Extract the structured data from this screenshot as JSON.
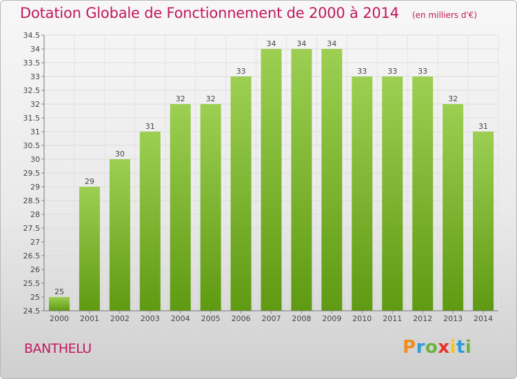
{
  "header": {
    "title": "Dotation Globale de Fonctionnement de 2000 à 2014",
    "unit": "(en milliers d'€)"
  },
  "footer": {
    "place": "BANTHELU",
    "logo_text": "Proxiti"
  },
  "colors": {
    "title": "#c2185b",
    "bar_light": "#9ccf52",
    "bar_dark": "#5f9a12",
    "logo": [
      "#f28c1e",
      "#2e9bd6",
      "#6cb33e",
      "#e8312c",
      "#f6c51b",
      "#2e9bd6",
      "#6cb33e"
    ]
  },
  "chart_data": {
    "type": "bar",
    "categories": [
      "2000",
      "2001",
      "2002",
      "2003",
      "2004",
      "2005",
      "2006",
      "2007",
      "2008",
      "2009",
      "2010",
      "2011",
      "2012",
      "2013",
      "2014"
    ],
    "values": [
      25,
      29,
      30,
      31,
      32,
      32,
      33,
      34,
      34,
      34,
      33,
      33,
      33,
      32,
      31
    ],
    "ylim": [
      24.5,
      34.5
    ],
    "yticks": [
      24.5,
      25,
      25.5,
      26,
      26.5,
      27,
      27.5,
      28,
      28.5,
      29,
      29.5,
      30,
      30.5,
      31,
      31.5,
      32,
      32.5,
      33,
      33.5,
      34,
      34.5
    ],
    "ytick_labels": [
      "24.5",
      "25",
      "25.5",
      "26",
      "26.5",
      "27",
      "27.5",
      "28",
      "28.5",
      "29",
      "29.5",
      "30",
      "30.5",
      "31",
      "31.5",
      "32",
      "32.5",
      "33",
      "33.5",
      "34",
      "34.5"
    ],
    "data_labels": [
      "25",
      "29",
      "30",
      "31",
      "32",
      "32",
      "33",
      "34",
      "34",
      "34",
      "33",
      "33",
      "33",
      "32",
      "31"
    ],
    "grid": true
  }
}
